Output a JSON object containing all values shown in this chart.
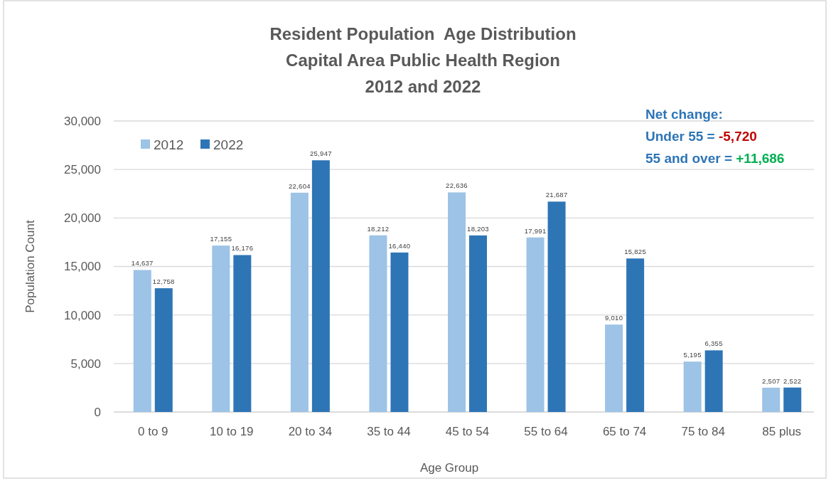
{
  "chart_data": {
    "type": "bar",
    "title": "Resident Population  Age Distribution\nCapital Area Public Health Region\n2012 and 2022",
    "xlabel": "Age Group",
    "ylabel": "Population Count",
    "categories": [
      "0 to 9",
      "10 to 19",
      "20 to 34",
      "35 to 44",
      "45 to 54",
      "55 to 64",
      "65 to 74",
      "75 to 84",
      "85 plus"
    ],
    "series": [
      {
        "name": "2012",
        "color": "#9dc3e6",
        "values": [
          14637,
          17155,
          22604,
          18212,
          22636,
          17991,
          9010,
          5195,
          2507
        ],
        "value_labels": [
          "14,637",
          "17,155",
          "22,604",
          "18,212",
          "22,636",
          "17,991",
          "9,010",
          "5,195",
          "2,507"
        ]
      },
      {
        "name": "2022",
        "color": "#2e75b6",
        "values": [
          12758,
          16176,
          25947,
          16440,
          18203,
          21687,
          15825,
          6355,
          2522
        ],
        "value_labels": [
          "12,758",
          "16,176",
          "25,947",
          "16,440",
          "18,203",
          "21,687",
          "15,825",
          "6,355",
          "2,522"
        ]
      }
    ],
    "ylim": [
      0,
      30000
    ],
    "yticks": [
      0,
      {
        "value": 5000,
        "label": "5,000"
      },
      {
        "value": 10000,
        "label": "10,000"
      },
      {
        "value": 15000,
        "label": "15,000"
      },
      {
        "value": 20000,
        "label": "20,000"
      },
      {
        "value": 25000,
        "label": "25,000"
      },
      {
        "value": 30000,
        "label": "30,000"
      }
    ],
    "grid": "y",
    "legend": "top left",
    "annotations": [
      "Net change:",
      "Under 55 = -5,720",
      "55 and over = +11,686"
    ]
  }
}
